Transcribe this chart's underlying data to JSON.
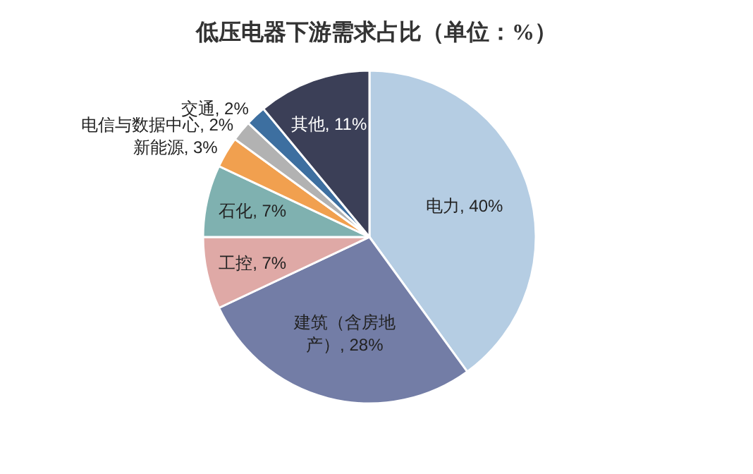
{
  "chart_data": {
    "type": "pie",
    "title": "低压电器下游需求占比（单位：%）",
    "categories": [
      "电力",
      "建筑（含房地产）",
      "工控",
      "石化",
      "新能源",
      "电信与数据中心",
      "交通",
      "其他"
    ],
    "values": [
      40,
      28,
      7,
      7,
      3,
      2,
      2,
      11
    ],
    "value_labels": [
      "40%",
      "28%",
      "7%",
      "7%",
      "3%",
      "2%",
      "2%",
      "11%"
    ],
    "colors": [
      "#b5cde3",
      "#737da6",
      "#dfa9a6",
      "#7fb1b0",
      "#f1a04f",
      "#b2b2b2",
      "#3d6fa0",
      "#3b3f57"
    ]
  }
}
